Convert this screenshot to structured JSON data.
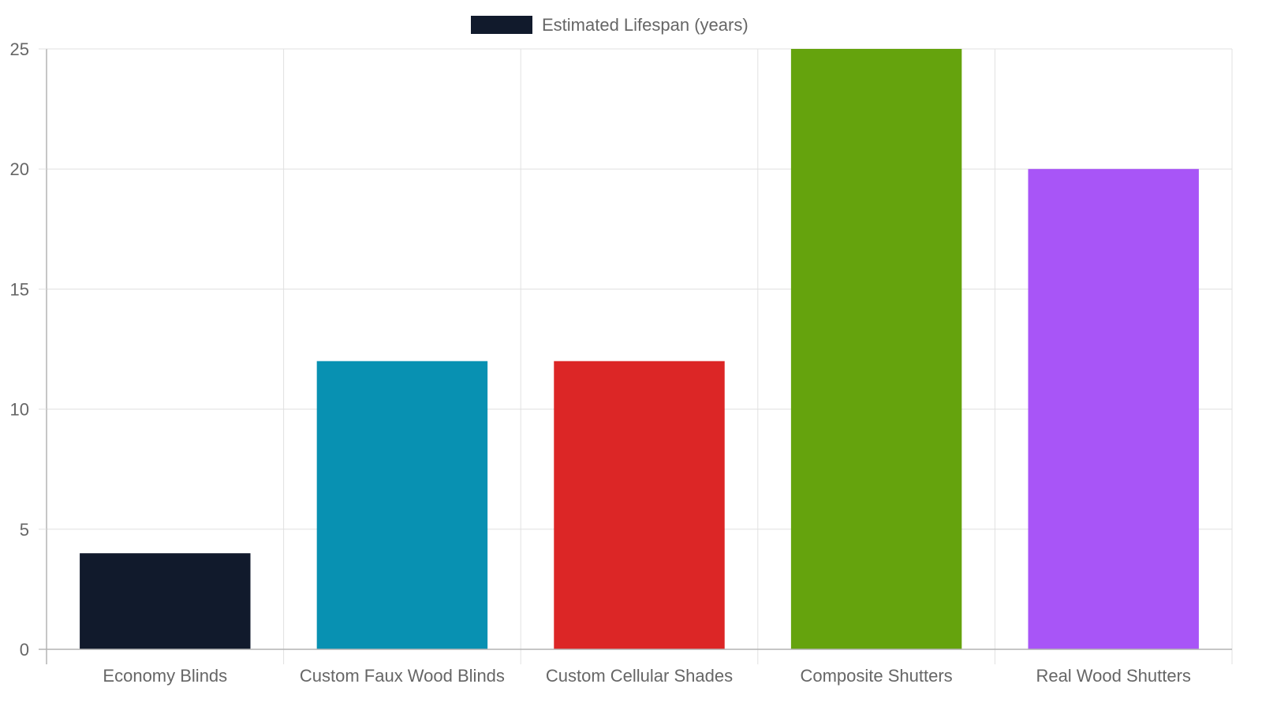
{
  "chart_data": {
    "type": "bar",
    "categories": [
      "Economy Blinds",
      "Custom Faux Wood Blinds",
      "Custom Cellular Shades",
      "Composite Shutters",
      "Real Wood Shutters"
    ],
    "series": [
      {
        "name": "Estimated Lifespan (years)",
        "values": [
          4,
          12,
          12,
          25,
          20
        ],
        "colors": [
          "#111a2c",
          "#0891b2",
          "#dc2626",
          "#65a30d",
          "#a855f7"
        ]
      }
    ],
    "title": "",
    "xlabel": "",
    "ylabel": "",
    "ylim": [
      0,
      25
    ],
    "yticks": [
      0,
      5,
      10,
      15,
      20,
      25
    ],
    "ytick_labels": [
      "0",
      "5",
      "10",
      "15",
      "20",
      "25"
    ],
    "grid": true,
    "legend_position": "top-center",
    "legend_color": "#111a2c",
    "grid_color": "#e0e0e0",
    "axis_color": "#b3b3b3",
    "text_color": "#666666"
  }
}
